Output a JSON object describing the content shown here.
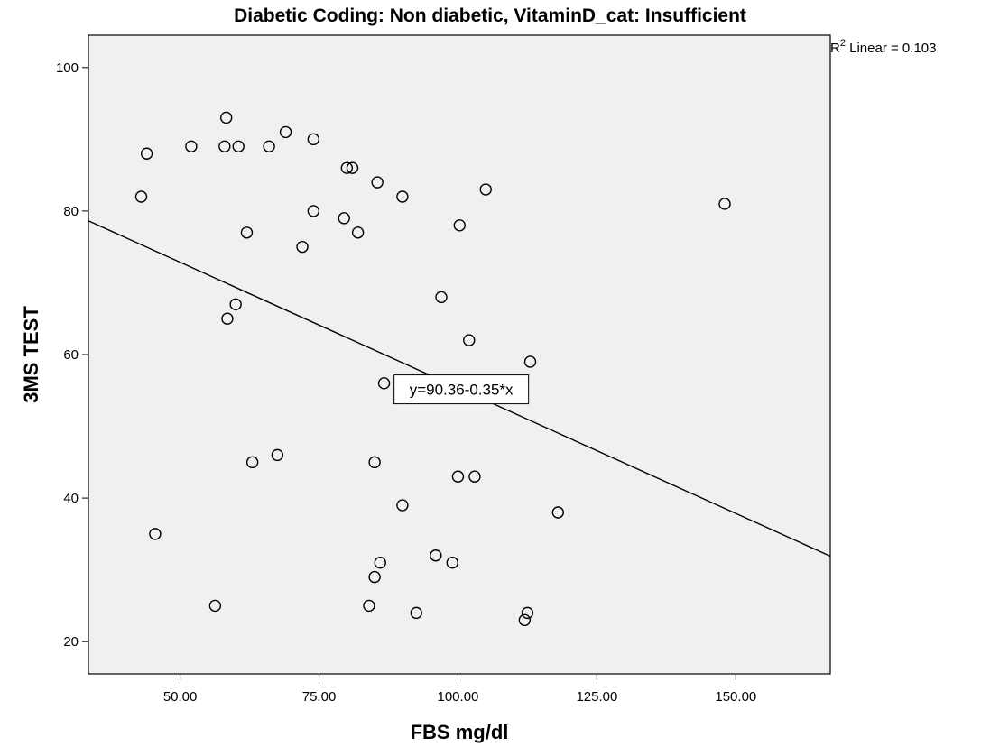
{
  "chart_data": {
    "type": "scatter",
    "title": "Diabetic Coding: Non diabetic, VitaminD_cat: Insufficient",
    "xlabel": "FBS mg/dl",
    "ylabel": "3MS TEST",
    "xlim": [
      33.5,
      167
    ],
    "ylim": [
      15.5,
      104.5
    ],
    "x_ticks": [
      50,
      75,
      100,
      125,
      150
    ],
    "x_tick_labels": [
      "50.00",
      "75.00",
      "100.00",
      "125.00",
      "150.00"
    ],
    "y_ticks": [
      20,
      40,
      60,
      80,
      100
    ],
    "y_tick_labels": [
      "20",
      "40",
      "60",
      "80",
      "100"
    ],
    "grid": false,
    "background_color": "#f0f0f0",
    "marker": "open-circle",
    "fit_line": {
      "type": "linear",
      "intercept": 90.36,
      "slope": -0.35,
      "equation_label": "y=90.36-0.35*x",
      "equation_x": 100.6,
      "r2_label_prefix": "R",
      "r2_label_sup": "2",
      "r2_label_suffix": " Linear = 0.103"
    },
    "points": [
      {
        "x": 43,
        "y": 82
      },
      {
        "x": 44,
        "y": 88
      },
      {
        "x": 45.5,
        "y": 35
      },
      {
        "x": 52,
        "y": 89
      },
      {
        "x": 56.3,
        "y": 25
      },
      {
        "x": 58,
        "y": 89
      },
      {
        "x": 58.3,
        "y": 93
      },
      {
        "x": 58.5,
        "y": 65
      },
      {
        "x": 60,
        "y": 67
      },
      {
        "x": 60.5,
        "y": 89
      },
      {
        "x": 62,
        "y": 77
      },
      {
        "x": 63,
        "y": 45
      },
      {
        "x": 66,
        "y": 89
      },
      {
        "x": 67.5,
        "y": 46
      },
      {
        "x": 69,
        "y": 91
      },
      {
        "x": 72,
        "y": 75
      },
      {
        "x": 74,
        "y": 90
      },
      {
        "x": 74,
        "y": 80
      },
      {
        "x": 79.5,
        "y": 79
      },
      {
        "x": 80,
        "y": 86
      },
      {
        "x": 81,
        "y": 86
      },
      {
        "x": 82,
        "y": 77
      },
      {
        "x": 84,
        "y": 25
      },
      {
        "x": 85,
        "y": 45
      },
      {
        "x": 85,
        "y": 29
      },
      {
        "x": 85.5,
        "y": 84
      },
      {
        "x": 86,
        "y": 31
      },
      {
        "x": 86.7,
        "y": 56
      },
      {
        "x": 90,
        "y": 82
      },
      {
        "x": 90,
        "y": 39
      },
      {
        "x": 92.5,
        "y": 24
      },
      {
        "x": 96,
        "y": 32
      },
      {
        "x": 97,
        "y": 68
      },
      {
        "x": 99,
        "y": 31
      },
      {
        "x": 100,
        "y": 43
      },
      {
        "x": 100.3,
        "y": 78
      },
      {
        "x": 102,
        "y": 62
      },
      {
        "x": 103,
        "y": 43
      },
      {
        "x": 105,
        "y": 83
      },
      {
        "x": 112,
        "y": 23
      },
      {
        "x": 112.5,
        "y": 24
      },
      {
        "x": 113,
        "y": 59
      },
      {
        "x": 118,
        "y": 38
      },
      {
        "x": 148,
        "y": 81
      }
    ]
  }
}
